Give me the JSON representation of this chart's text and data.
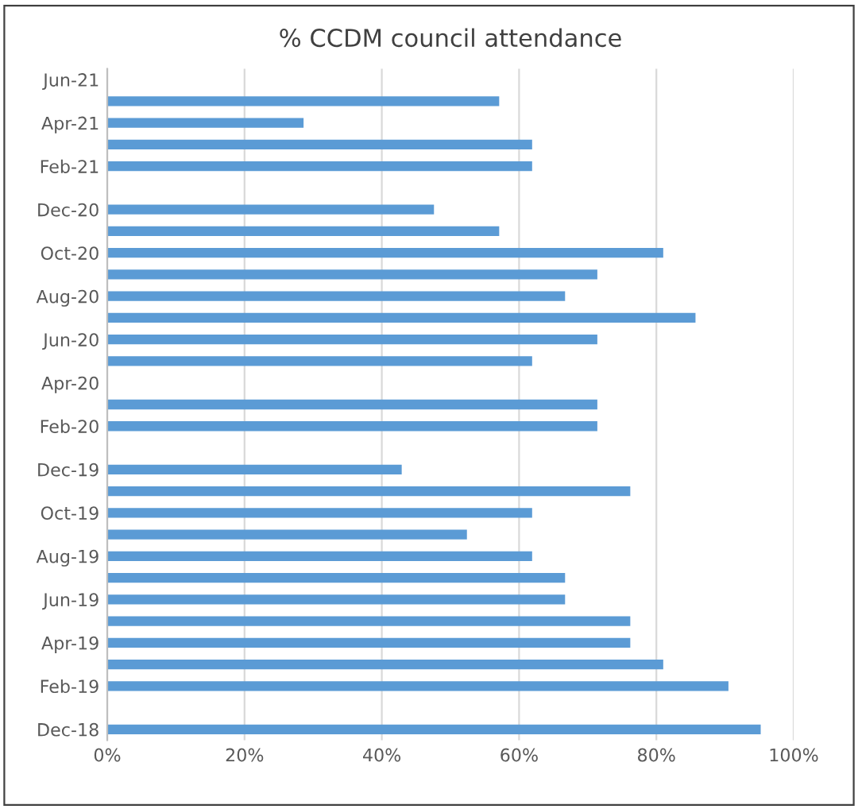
{
  "chart_data": {
    "type": "bar",
    "orientation": "horizontal",
    "title": "% CCDM council attendance",
    "categories": [
      "Jun-21",
      null,
      "Apr-21",
      null,
      "Feb-21",
      null,
      "Dec-20",
      null,
      "Oct-20",
      null,
      "Aug-20",
      null,
      "Jun-20",
      null,
      "Apr-20",
      null,
      "Feb-20",
      null,
      "Dec-19",
      null,
      "Oct-19",
      null,
      "Aug-19",
      null,
      "Jun-19",
      null,
      "Apr-19",
      null,
      "Feb-19",
      null,
      "Dec-18"
    ],
    "values": [
      null,
      57.1,
      28.6,
      61.9,
      61.9,
      null,
      47.6,
      57.1,
      81,
      71.4,
      66.7,
      85.7,
      71.4,
      61.9,
      null,
      71.4,
      71.4,
      null,
      42.9,
      76.2,
      61.9,
      52.4,
      61.9,
      66.7,
      66.7,
      76.2,
      76.2,
      81,
      90.5,
      null,
      95.2
    ],
    "color": "#5b9bd5",
    "xlim": [
      0,
      100
    ],
    "xticks": [
      {
        "value": 0,
        "label": "0%"
      },
      {
        "value": 20,
        "label": "20%"
      },
      {
        "value": 40,
        "label": "40%"
      },
      {
        "value": 60,
        "label": "60%"
      },
      {
        "value": 80,
        "label": "80%"
      },
      {
        "value": 100,
        "label": "100%"
      }
    ],
    "grid": "x"
  }
}
